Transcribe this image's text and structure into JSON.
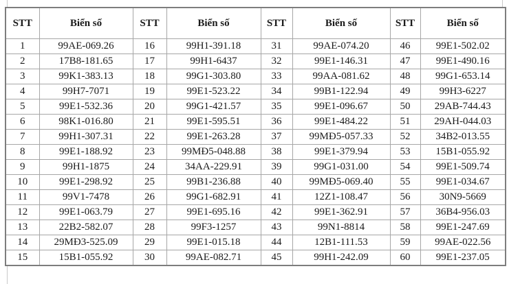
{
  "table": {
    "header": {
      "stt": "STT",
      "plate": "Biển số"
    },
    "rows": [
      [
        "1",
        "99AE-069.26",
        "16",
        "99H1-391.18",
        "31",
        "99AE-074.20",
        "46",
        "99E1-502.02"
      ],
      [
        "2",
        "17B8-181.65",
        "17",
        "99H1-6437",
        "32",
        "99E1-146.31",
        "47",
        "99E1-490.16"
      ],
      [
        "3",
        "99K1-383.13",
        "18",
        "99G1-303.80",
        "33",
        "99AA-081.62",
        "48",
        "99G1-653.14"
      ],
      [
        "4",
        "99H7-7071",
        "19",
        "99E1-523.22",
        "34",
        "99B1-122.94",
        "49",
        "99H3-6227"
      ],
      [
        "5",
        "99E1-532.36",
        "20",
        "99G1-421.57",
        "35",
        "99E1-096.67",
        "50",
        "29AB-744.43"
      ],
      [
        "6",
        "98K1-016.80",
        "21",
        "99E1-595.51",
        "36",
        "99E1-484.22",
        "51",
        "29AH-044.03"
      ],
      [
        "7",
        "99H1-307.31",
        "22",
        "99E1-263.28",
        "37",
        "99MĐ5-057.33",
        "52",
        "34B2-013.55"
      ],
      [
        "8",
        "99E1-188.92",
        "23",
        "99MĐ5-048.88",
        "38",
        "99E1-379.94",
        "53",
        "15B1-055.92"
      ],
      [
        "9",
        "99H1-1875",
        "24",
        "34AA-229.91",
        "39",
        "99G1-031.00",
        "54",
        "99E1-509.74"
      ],
      [
        "10",
        "99E1-298.92",
        "25",
        "99B1-236.88",
        "40",
        "99MĐ5-069.40",
        "55",
        "99E1-034.67"
      ],
      [
        "11",
        "99V1-7478",
        "26",
        "99G1-682.91",
        "41",
        "12Z1-108.47",
        "56",
        "30N9-5669"
      ],
      [
        "12",
        "99E1-063.79",
        "27",
        "99E1-695.16",
        "42",
        "99E1-362.91",
        "57",
        "36B4-956.03"
      ],
      [
        "13",
        "22B2-582.07",
        "28",
        "99F3-1257",
        "43",
        "99N1-8814",
        "58",
        "99E1-247.69"
      ],
      [
        "14",
        "29MĐ3-525.09",
        "29",
        "99E1-015.18",
        "44",
        "12B1-111.53",
        "59",
        "99AE-022.56"
      ],
      [
        "15",
        "15B1-055.92",
        "30",
        "99AE-082.71",
        "45",
        "99H1-242.09",
        "60",
        "99E1-237.05"
      ]
    ]
  },
  "colors": {
    "background": "#ffffff",
    "text": "#1a1a1a",
    "border_outer": "#7d7d7d",
    "border_inner": "#a6a6a6",
    "frame_tick": "#c9c9c9"
  }
}
